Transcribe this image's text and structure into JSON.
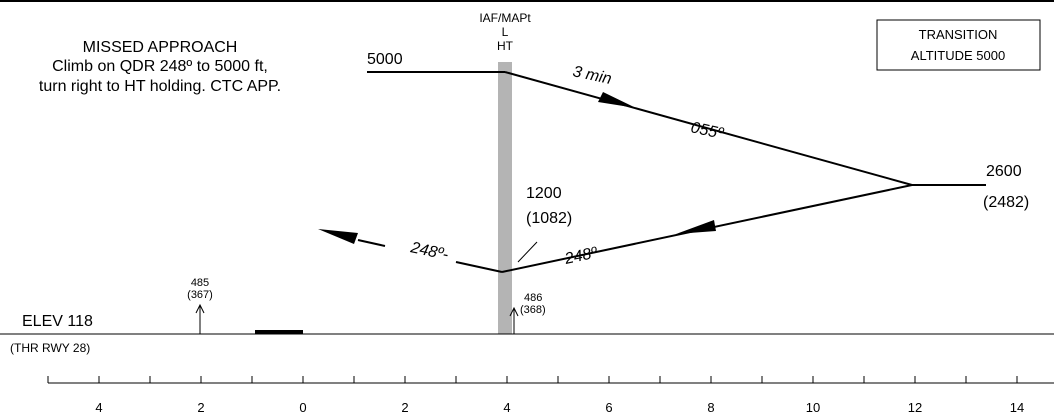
{
  "missed_approach": {
    "title": "MISSED APPROACH",
    "line1": "Climb on QDR 248º to 5000 ft,",
    "line2": "turn right to HT holding. CTC APP."
  },
  "transition_box": {
    "line1": "TRANSITION",
    "line2": "ALTITUDE 5000"
  },
  "fix": {
    "line1": "IAF/MAPt",
    "line2": "L",
    "line3": "HT"
  },
  "altitudes": {
    "left_5000": "5000",
    "right_2600": "2600",
    "right_2600_agl": "(2482)",
    "low_1200": "1200",
    "low_1200_agl": "(1082)"
  },
  "tracks": {
    "outbound_time": "3 min",
    "outbound_course": "055º",
    "inbound_course": "248º",
    "missed_course": "248º-"
  },
  "obstacles": [
    {
      "elev": "485",
      "agl": "(367)"
    },
    {
      "elev": "486",
      "agl": "(368)"
    }
  ],
  "airport": {
    "elevation": "ELEV 118",
    "threshold": "(THR RWY 28)"
  },
  "distance_scale": {
    "labels": [
      "4",
      "2",
      "0",
      "2",
      "4",
      "6",
      "8",
      "10",
      "12",
      "14"
    ]
  },
  "colors": {
    "ink": "#000000",
    "fix_bar": "#b4b4b4"
  }
}
